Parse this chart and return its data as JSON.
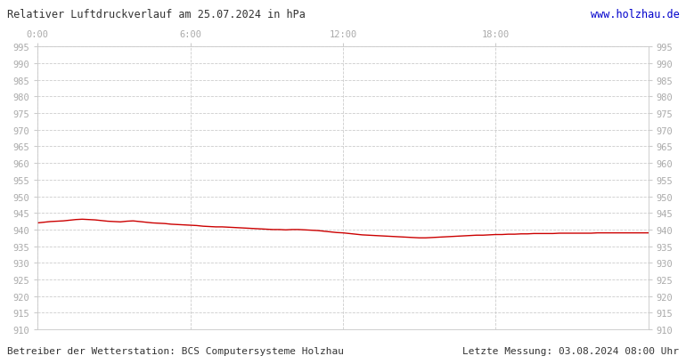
{
  "title": "Relativer Luftdruckverlauf am 25.07.2024 in hPa",
  "url_text": "www.holzhau.de",
  "footer_left": "Betreiber der Wetterstation: BCS Computersysteme Holzhau",
  "footer_right": "Letzte Messung: 03.08.2024 08:00 Uhr",
  "ymin": 910,
  "ymax": 995,
  "ytick_step": 5,
  "line_color": "#cc0000",
  "background_color": "#ffffff",
  "grid_color": "#cccccc",
  "tick_label_color": "#aaaaaa",
  "text_color": "#333333",
  "url_color": "#0000cc",
  "pressure_data_x": [
    0.0,
    0.25,
    0.5,
    0.75,
    1.0,
    1.25,
    1.5,
    1.75,
    2.0,
    2.25,
    2.5,
    2.75,
    3.0,
    3.25,
    3.5,
    3.75,
    4.0,
    4.25,
    4.5,
    4.75,
    5.0,
    5.25,
    5.5,
    5.75,
    6.0,
    6.25,
    6.5,
    6.75,
    7.0,
    7.25,
    7.5,
    7.75,
    8.0,
    8.25,
    8.5,
    8.75,
    9.0,
    9.25,
    9.5,
    9.75,
    10.0,
    10.25,
    10.5,
    10.75,
    11.0,
    11.25,
    11.5,
    11.75,
    12.0,
    12.25,
    12.5,
    12.75,
    13.0,
    13.25,
    13.5,
    13.75,
    14.0,
    14.25,
    14.5,
    14.75,
    15.0,
    15.25,
    15.5,
    15.75,
    16.0,
    16.25,
    16.5,
    16.75,
    17.0,
    17.25,
    17.5,
    17.75,
    18.0,
    18.25,
    18.5,
    18.75,
    19.0,
    19.25,
    19.5,
    19.75,
    20.0,
    20.25,
    20.5,
    20.75,
    21.0,
    21.25,
    21.5,
    21.75,
    22.0,
    22.25,
    22.5,
    22.75,
    23.0,
    23.25,
    23.5,
    23.75,
    24.0
  ],
  "pressure_data_y": [
    942.0,
    942.2,
    942.4,
    942.5,
    942.6,
    942.8,
    943.0,
    943.1,
    943.0,
    942.9,
    942.7,
    942.5,
    942.4,
    942.3,
    942.5,
    942.6,
    942.4,
    942.2,
    942.0,
    941.9,
    941.8,
    941.6,
    941.5,
    941.4,
    941.3,
    941.2,
    941.0,
    940.9,
    940.8,
    940.8,
    940.7,
    940.6,
    940.5,
    940.4,
    940.3,
    940.2,
    940.1,
    940.0,
    940.0,
    939.9,
    940.0,
    940.0,
    939.9,
    939.8,
    939.7,
    939.5,
    939.3,
    939.1,
    939.0,
    938.8,
    938.6,
    938.4,
    938.3,
    938.2,
    938.1,
    938.0,
    937.9,
    937.8,
    937.7,
    937.6,
    937.5,
    937.5,
    937.6,
    937.7,
    937.8,
    937.9,
    938.0,
    938.1,
    938.2,
    938.3,
    938.3,
    938.4,
    938.5,
    938.5,
    938.6,
    938.6,
    938.7,
    938.7,
    938.8,
    938.8,
    938.8,
    938.8,
    938.9,
    938.9,
    938.9,
    938.9,
    938.9,
    938.9,
    939.0,
    939.0,
    939.0,
    939.0,
    939.0,
    939.0,
    939.0,
    939.0,
    939.0
  ]
}
